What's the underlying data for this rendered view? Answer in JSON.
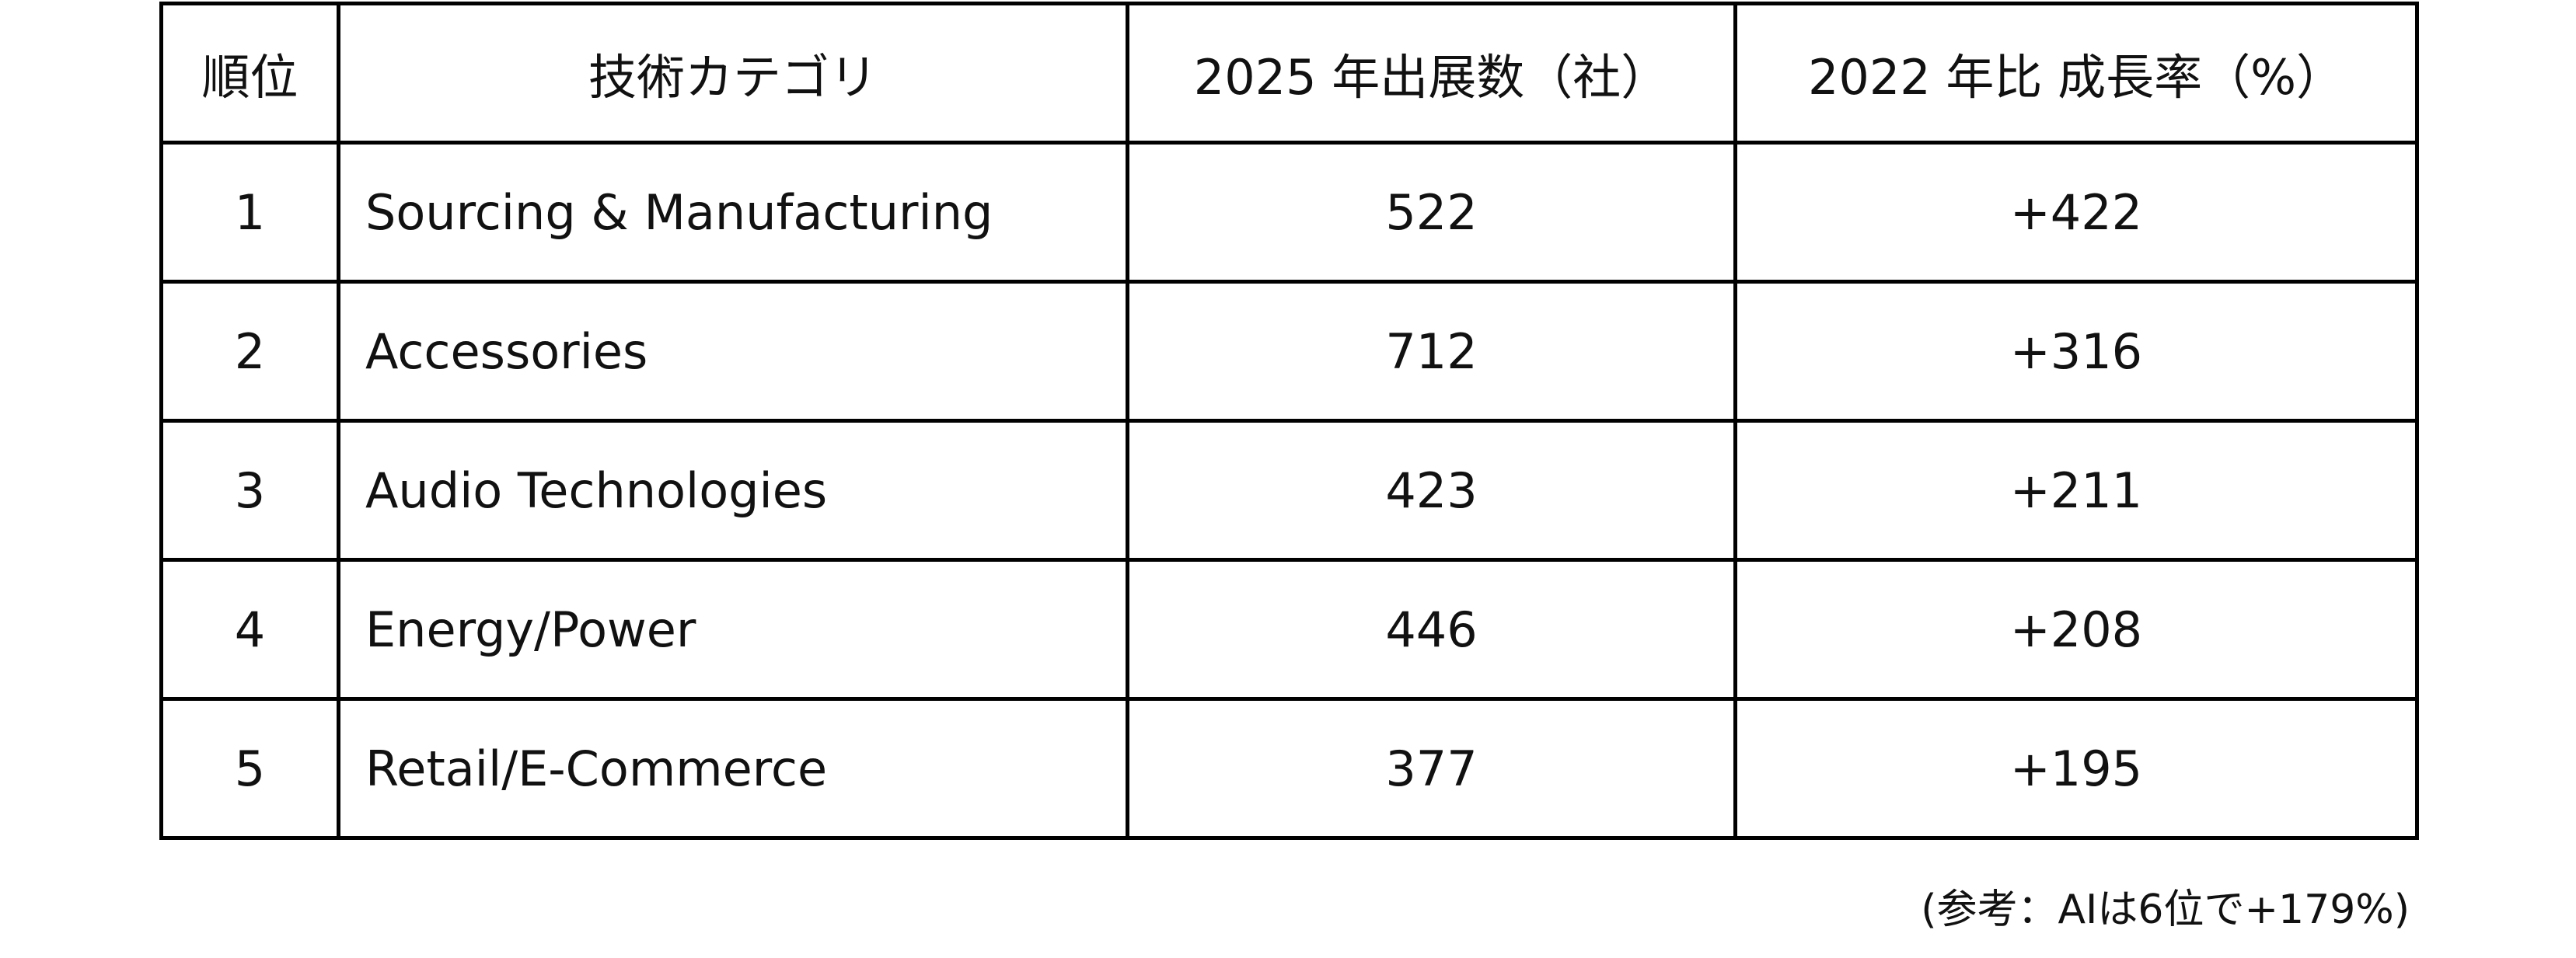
{
  "table": {
    "header": [
      "順位",
      "技術カテゴリ",
      "2025 年出展数（社）",
      "2022 年比 成長率（%）"
    ],
    "rows": [
      [
        1,
        "Sourcing & Manufacturing",
        522,
        "+422"
      ],
      [
        2,
        "Accessories",
        712,
        "+316"
      ],
      [
        3,
        "Audio Technologies",
        423,
        "+211"
      ],
      [
        4,
        "Energy/Power",
        446,
        "+208"
      ],
      [
        5,
        "Retail/E-Commerce",
        377,
        "+195"
      ]
    ],
    "note": "(参考：AIは6位で+179%)"
  }
}
